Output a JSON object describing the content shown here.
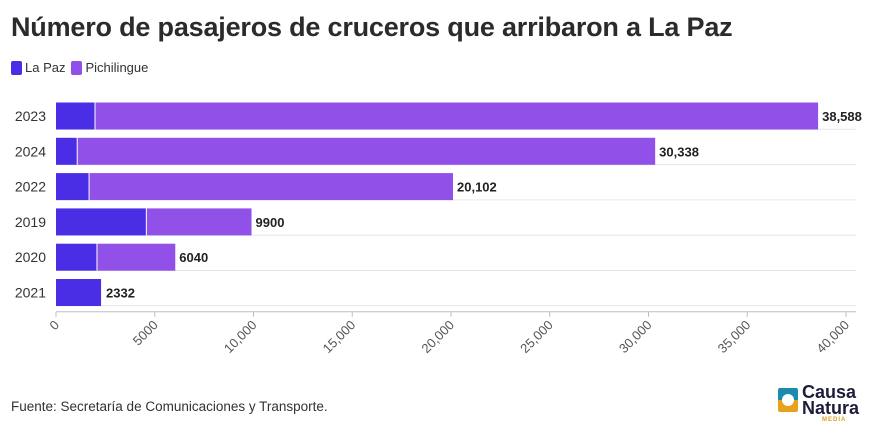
{
  "title": "Número de pasajeros de cruceros que arribaron a La Paz",
  "source": "Fuente: Secretaría de Comunicaciones y Transporte.",
  "logo": {
    "line1": "Causa",
    "line2": "Natura",
    "line3": "MEDIA"
  },
  "colors": {
    "la_paz": "#4a2ee6",
    "pichilingue": "#9150e8",
    "grid": "#e6e6e6"
  },
  "chart_data": {
    "type": "bar",
    "orientation": "horizontal",
    "stacked": true,
    "categories": [
      "2023",
      "2024",
      "2022",
      "2019",
      "2020",
      "2021"
    ],
    "series": [
      {
        "name": "La Paz",
        "values": [
          2000,
          1100,
          1700,
          4600,
          2100,
          2332
        ]
      },
      {
        "name": "Pichilingue",
        "values": [
          36588,
          29238,
          18402,
          5300,
          3940,
          0
        ]
      }
    ],
    "totals": [
      38588,
      30338,
      20102,
      9900,
      6040,
      2332
    ],
    "total_labels": [
      "38,588",
      "30,338",
      "20,102",
      "9900",
      "6040",
      "2332"
    ],
    "x_ticks": [
      0,
      5000,
      10000,
      15000,
      20000,
      25000,
      30000,
      35000,
      40000
    ],
    "x_tick_labels": [
      "0",
      "5000",
      "10,000",
      "15,000",
      "20,000",
      "25,000",
      "30,000",
      "35,000",
      "40,000"
    ],
    "xlim": [
      0,
      40000
    ],
    "legend": "top-left",
    "grid": true
  }
}
